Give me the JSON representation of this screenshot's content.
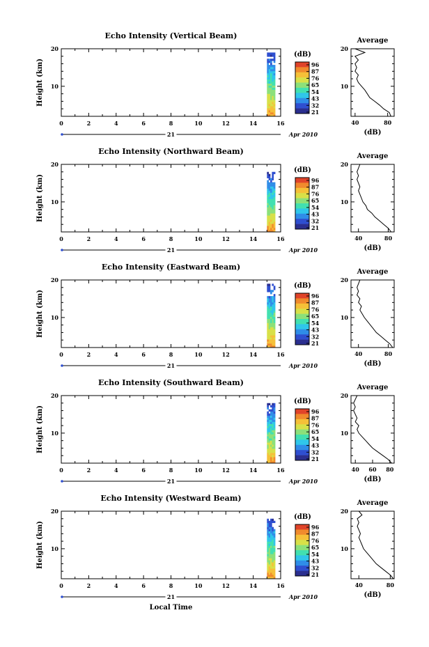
{
  "chart_data": [
    {
      "type": "heatmap",
      "title": "Echo Intensity (Vertical Beam)",
      "ylabel": "Height (km)",
      "x_ticks": [
        "0",
        "2",
        "4",
        "6",
        "8",
        "10",
        "12",
        "14",
        "16"
      ],
      "xlim": [
        0,
        16
      ],
      "y_ticks": [
        "20",
        "10"
      ],
      "ylim": [
        2,
        20
      ],
      "date_day": "21",
      "date_month_year": "Apr 2010",
      "data_span_hours": [
        15.0,
        15.6
      ],
      "data_top_km": 19,
      "colorbar": {
        "label": "(dB)",
        "ticks": [
          "96",
          "87",
          "76",
          "65",
          "54",
          "43",
          "32",
          "21"
        ]
      },
      "profile": {
        "title": "Average",
        "xlabel": "(dB)",
        "x_ticks": [
          "40",
          "80"
        ],
        "xlim": [
          35,
          88
        ],
        "y_ticks": [
          "20",
          "10"
        ],
        "ylim": [
          2,
          20
        ],
        "heights": [
          2,
          3,
          4,
          5,
          6,
          7,
          8,
          9,
          10,
          11,
          12,
          13,
          14,
          15,
          16,
          17,
          18,
          19,
          20
        ],
        "values": [
          84,
          82,
          75,
          70,
          64,
          58,
          55,
          52,
          48,
          44,
          42,
          44,
          40,
          42,
          40,
          44,
          40,
          52,
          40
        ]
      }
    },
    {
      "type": "heatmap",
      "title": "Echo Intensity (Northward Beam)",
      "ylabel": "Height (km)",
      "x_ticks": [
        "0",
        "2",
        "4",
        "6",
        "8",
        "10",
        "12",
        "14",
        "16"
      ],
      "xlim": [
        0,
        16
      ],
      "y_ticks": [
        "20",
        "10"
      ],
      "ylim": [
        2,
        20
      ],
      "date_day": "21",
      "date_month_year": "Apr 2010",
      "data_span_hours": [
        15.0,
        15.6
      ],
      "data_top_km": 18,
      "colorbar": {
        "label": "(dB)",
        "ticks": [
          "96",
          "87",
          "76",
          "65",
          "54",
          "43",
          "32",
          "21"
        ]
      },
      "profile": {
        "title": "Average",
        "xlabel": "(dB)",
        "x_ticks": [
          "40",
          "80"
        ],
        "xlim": [
          30,
          88
        ],
        "y_ticks": [
          "20",
          "10"
        ],
        "ylim": [
          2,
          20
        ],
        "heights": [
          2,
          3,
          4,
          5,
          6,
          7,
          8,
          9,
          10,
          11,
          12,
          13,
          14,
          15,
          16,
          17,
          18,
          19,
          20
        ],
        "values": [
          84,
          80,
          74,
          68,
          62,
          58,
          52,
          50,
          46,
          44,
          42,
          40,
          42,
          40,
          38,
          40,
          38,
          40,
          42
        ]
      }
    },
    {
      "type": "heatmap",
      "title": "Echo Intensity (Eastward Beam)",
      "ylabel": "Height (km)",
      "x_ticks": [
        "0",
        "2",
        "4",
        "6",
        "8",
        "10",
        "12",
        "14",
        "16"
      ],
      "xlim": [
        0,
        16
      ],
      "y_ticks": [
        "20",
        "10"
      ],
      "ylim": [
        2,
        20
      ],
      "date_day": "21",
      "date_month_year": "Apr 2010",
      "data_span_hours": [
        15.0,
        15.6
      ],
      "data_top_km": 19,
      "colorbar": {
        "label": "(dB)",
        "ticks": [
          "96",
          "87",
          "76",
          "65",
          "54",
          "43",
          "32",
          "21"
        ]
      },
      "profile": {
        "title": "Average",
        "xlabel": "(dB)",
        "x_ticks": [
          "40",
          "80"
        ],
        "xlim": [
          30,
          88
        ],
        "y_ticks": [
          "20",
          "10"
        ],
        "ylim": [
          2,
          20
        ],
        "heights": [
          2,
          3,
          4,
          5,
          6,
          7,
          8,
          9,
          10,
          11,
          12,
          13,
          14,
          15,
          16,
          17,
          18,
          19,
          20
        ],
        "values": [
          86,
          82,
          76,
          70,
          64,
          60,
          56,
          52,
          48,
          45,
          42,
          44,
          40,
          42,
          38,
          40,
          38,
          40,
          42
        ]
      }
    },
    {
      "type": "heatmap",
      "title": "Echo Intensity (Southward Beam)",
      "ylabel": "Height (km)",
      "x_ticks": [
        "0",
        "2",
        "4",
        "6",
        "8",
        "10",
        "12",
        "14",
        "16"
      ],
      "xlim": [
        0,
        16
      ],
      "y_ticks": [
        "20",
        "10"
      ],
      "ylim": [
        2,
        20
      ],
      "date_day": "21",
      "date_month_year": "Apr 2010",
      "data_span_hours": [
        15.0,
        15.6
      ],
      "data_top_km": 18,
      "colorbar": {
        "label": "(dB)",
        "ticks": [
          "96",
          "87",
          "76",
          "65",
          "54",
          "43",
          "32",
          "21"
        ]
      },
      "profile": {
        "title": "Average",
        "xlabel": "(dB)",
        "x_ticks": [
          "40",
          "60",
          "80"
        ],
        "xlim": [
          35,
          85
        ],
        "y_ticks": [
          "20",
          "10"
        ],
        "ylim": [
          2,
          20
        ],
        "heights": [
          2,
          3,
          4,
          5,
          6,
          7,
          8,
          9,
          10,
          11,
          12,
          13,
          14,
          15,
          16,
          17,
          18,
          19,
          20
        ],
        "values": [
          82,
          78,
          72,
          66,
          60,
          56,
          52,
          48,
          44,
          42,
          44,
          40,
          42,
          40,
          38,
          40,
          38,
          40,
          42
        ]
      }
    },
    {
      "type": "heatmap",
      "title": "Echo Intensity (Westward Beam)",
      "ylabel": "Height (km)",
      "x_ticks": [
        "0",
        "2",
        "4",
        "6",
        "8",
        "10",
        "12",
        "14",
        "16"
      ],
      "xlim": [
        0,
        16
      ],
      "y_ticks": [
        "20",
        "10"
      ],
      "ylim": [
        2,
        20
      ],
      "date_day": "21",
      "date_month_year": "Apr 2010",
      "data_span_hours": [
        15.0,
        15.6
      ],
      "data_top_km": 18,
      "colorbar": {
        "label": "(dB)",
        "ticks": [
          "96",
          "87",
          "76",
          "65",
          "54",
          "43",
          "32",
          "21"
        ]
      },
      "profile": {
        "title": "Average",
        "xlabel": "(dB)",
        "x_ticks": [
          "40",
          "80"
        ],
        "xlim": [
          30,
          85
        ],
        "y_ticks": [
          "20",
          "10"
        ],
        "ylim": [
          2,
          20
        ],
        "heights": [
          2,
          3,
          4,
          5,
          6,
          7,
          8,
          9,
          10,
          11,
          12,
          13,
          14,
          15,
          16,
          17,
          18,
          19,
          20
        ],
        "values": [
          84,
          80,
          74,
          68,
          62,
          58,
          54,
          50,
          46,
          44,
          42,
          40,
          42,
          40,
          38,
          40,
          38,
          44,
          40
        ]
      }
    }
  ],
  "footer": {
    "xlabel": "Local Time"
  }
}
